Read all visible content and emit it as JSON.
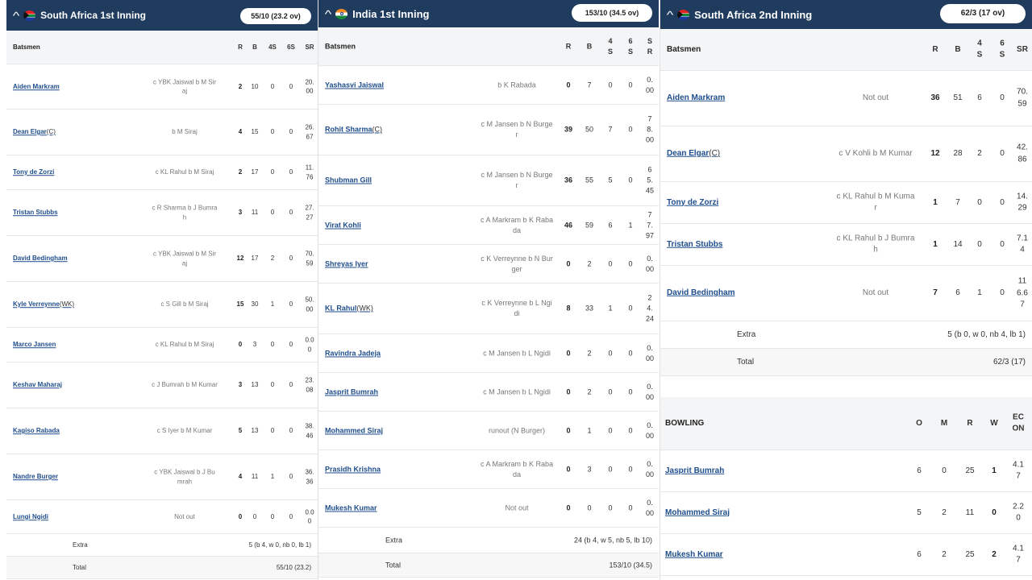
{
  "innings": [
    {
      "title": "South Africa 1st Inning",
      "flag": "south-africa",
      "score": "55/10 (23.2 ov)",
      "headers": {
        "batsmen": "Batsmen",
        "r": "R",
        "b": "B",
        "fours": "4S",
        "sixes": "6S",
        "sr": "SR"
      },
      "batsmen": [
        {
          "name": "Aiden Markram",
          "tag": "",
          "dismissal": "c YBK Jaiswal b M Siraj",
          "r": "2",
          "b": "10",
          "fours": "0",
          "sixes": "0",
          "sr": "20.00"
        },
        {
          "name": "Dean Elgar",
          "tag": "(C)",
          "dismissal": "b M Siraj",
          "r": "4",
          "b": "15",
          "fours": "0",
          "sixes": "0",
          "sr": "26.67"
        },
        {
          "name": "Tony de Zorzi",
          "tag": "",
          "dismissal": "c KL Rahul b M Siraj",
          "r": "2",
          "b": "17",
          "fours": "0",
          "sixes": "0",
          "sr": "11.76"
        },
        {
          "name": "Tristan Stubbs",
          "tag": "",
          "dismissal": "c R Sharma b J Bumrah",
          "r": "3",
          "b": "11",
          "fours": "0",
          "sixes": "0",
          "sr": "27.27"
        },
        {
          "name": "David Bedingham",
          "tag": "",
          "dismissal": "c YBK Jaiswal b M Siraj",
          "r": "12",
          "b": "17",
          "fours": "2",
          "sixes": "0",
          "sr": "70.59"
        },
        {
          "name": "Kyle Verreynne",
          "tag": "(WK)",
          "dismissal": "c S Gill b M Siraj",
          "r": "15",
          "b": "30",
          "fours": "1",
          "sixes": "0",
          "sr": "50.00"
        },
        {
          "name": "Marco Jansen",
          "tag": "",
          "dismissal": "c KL Rahul b M Siraj",
          "r": "0",
          "b": "3",
          "fours": "0",
          "sixes": "0",
          "sr": "0.00"
        },
        {
          "name": "Keshav Maharaj",
          "tag": "",
          "dismissal": "c J Bumrah b M Kumar",
          "r": "3",
          "b": "13",
          "fours": "0",
          "sixes": "0",
          "sr": "23.08"
        },
        {
          "name": "Kagiso Rabada",
          "tag": "",
          "dismissal": "c S Iyer b M Kumar",
          "r": "5",
          "b": "13",
          "fours": "0",
          "sixes": "0",
          "sr": "38.46"
        },
        {
          "name": "Nandre Burger",
          "tag": "",
          "dismissal": "c YBK Jaiswal b J Bumrah",
          "r": "4",
          "b": "11",
          "fours": "1",
          "sixes": "0",
          "sr": "36.36"
        },
        {
          "name": "Lungi Ngidi",
          "tag": "",
          "dismissal": "Not out",
          "r": "0",
          "b": "0",
          "fours": "0",
          "sixes": "0",
          "sr": "0.00"
        }
      ],
      "extra_label": "Extra",
      "extra_value": "5 (b 4, w 0, nb 0, lb 1)",
      "total_label": "Total",
      "total_value": "55/10 (23.2)"
    },
    {
      "title": "India 1st Inning",
      "flag": "india",
      "score": "153/10 (34.5 ov)",
      "headers": {
        "batsmen": "Batsmen",
        "r": "R",
        "b": "B",
        "fours": "4S",
        "sixes": "6S",
        "sr": "SR"
      },
      "batsmen": [
        {
          "name": "Yashasvi Jaiswal",
          "tag": "",
          "dismissal": "b K Rabada",
          "r": "0",
          "b": "7",
          "fours": "0",
          "sixes": "0",
          "sr": "0.00"
        },
        {
          "name": "Rohit Sharma",
          "tag": "(C)",
          "dismissal": "c M Jansen b N Burger",
          "r": "39",
          "b": "50",
          "fours": "7",
          "sixes": "0",
          "sr": "78.00"
        },
        {
          "name": "Shubman Gill",
          "tag": "",
          "dismissal": "c M Jansen b N Burger",
          "r": "36",
          "b": "55",
          "fours": "5",
          "sixes": "0",
          "sr": "65.45"
        },
        {
          "name": "Virat Kohli",
          "tag": "",
          "dismissal": "c A Markram b K Rabada",
          "r": "46",
          "b": "59",
          "fours": "6",
          "sixes": "1",
          "sr": "77.97"
        },
        {
          "name": "Shreyas Iyer",
          "tag": "",
          "dismissal": "c K Verreynne b N Burger",
          "r": "0",
          "b": "2",
          "fours": "0",
          "sixes": "0",
          "sr": "0.00"
        },
        {
          "name": "KL Rahul",
          "tag": "(WK)",
          "dismissal": "c K Verreynne b L Ngidi",
          "r": "8",
          "b": "33",
          "fours": "1",
          "sixes": "0",
          "sr": "24.24"
        },
        {
          "name": "Ravindra Jadeja",
          "tag": "",
          "dismissal": "c M Jansen b L Ngidi",
          "r": "0",
          "b": "2",
          "fours": "0",
          "sixes": "0",
          "sr": "0.00"
        },
        {
          "name": "Jasprit Bumrah",
          "tag": "",
          "dismissal": "c M Jansen b L Ngidi",
          "r": "0",
          "b": "2",
          "fours": "0",
          "sixes": "0",
          "sr": "0.00"
        },
        {
          "name": "Mohammed Siraj",
          "tag": "",
          "dismissal": "runout (N Burger)",
          "r": "0",
          "b": "1",
          "fours": "0",
          "sixes": "0",
          "sr": "0.00"
        },
        {
          "name": "Prasidh Krishna",
          "tag": "",
          "dismissal": "c A Markram b K Rabada",
          "r": "0",
          "b": "3",
          "fours": "0",
          "sixes": "0",
          "sr": "0.00"
        },
        {
          "name": "Mukesh Kumar",
          "tag": "",
          "dismissal": "Not out",
          "r": "0",
          "b": "0",
          "fours": "0",
          "sixes": "0",
          "sr": "0.00"
        }
      ],
      "extra_label": "Extra",
      "extra_value": "24 (b 4, w 5, nb 5, lb 10)",
      "total_label": "Total",
      "total_value": "153/10 (34.5)"
    },
    {
      "title": "South Africa 2nd Inning",
      "flag": "south-africa",
      "score": "62/3 (17 ov)",
      "headers": {
        "batsmen": "Batsmen",
        "r": "R",
        "b": "B",
        "fours": "4S",
        "sixes": "6S",
        "sr": "SR"
      },
      "batsmen": [
        {
          "name": "Aiden Markram",
          "tag": "",
          "dismissal": "Not out",
          "r": "36",
          "b": "51",
          "fours": "6",
          "sixes": "0",
          "sr": "70.59"
        },
        {
          "name": "Dean Elgar",
          "tag": "(C)",
          "dismissal": "c V Kohli b M Kumar",
          "r": "12",
          "b": "28",
          "fours": "2",
          "sixes": "0",
          "sr": "42.86"
        },
        {
          "name": "Tony de Zorzi",
          "tag": "",
          "dismissal": "c KL Rahul b M Kumar",
          "r": "1",
          "b": "7",
          "fours": "0",
          "sixes": "0",
          "sr": "14.29"
        },
        {
          "name": "Tristan Stubbs",
          "tag": "",
          "dismissal": "c KL Rahul b J Bumrah",
          "r": "1",
          "b": "14",
          "fours": "0",
          "sixes": "0",
          "sr": "7.14"
        },
        {
          "name": "David Bedingham",
          "tag": "",
          "dismissal": "Not out",
          "r": "7",
          "b": "6",
          "fours": "1",
          "sixes": "0",
          "sr": "116.67"
        }
      ],
      "extra_label": "Extra",
      "extra_value": "5 (b 0, w 0, nb 4, lb 1)",
      "total_label": "Total",
      "total_value": "62/3 (17)",
      "bowling": {
        "headers": {
          "bowling": "BOWLING",
          "o": "O",
          "m": "M",
          "r": "R",
          "w": "W",
          "econ": "ECON"
        },
        "bowlers": [
          {
            "name": "Jasprit Bumrah",
            "o": "6",
            "m": "0",
            "r": "25",
            "w": "1",
            "econ": "4.17"
          },
          {
            "name": "Mohammed Siraj",
            "o": "5",
            "m": "2",
            "r": "11",
            "w": "0",
            "econ": "2.20"
          },
          {
            "name": "Mukesh Kumar",
            "o": "6",
            "m": "2",
            "r": "25",
            "w": "2",
            "econ": "4.17"
          }
        ]
      }
    }
  ]
}
